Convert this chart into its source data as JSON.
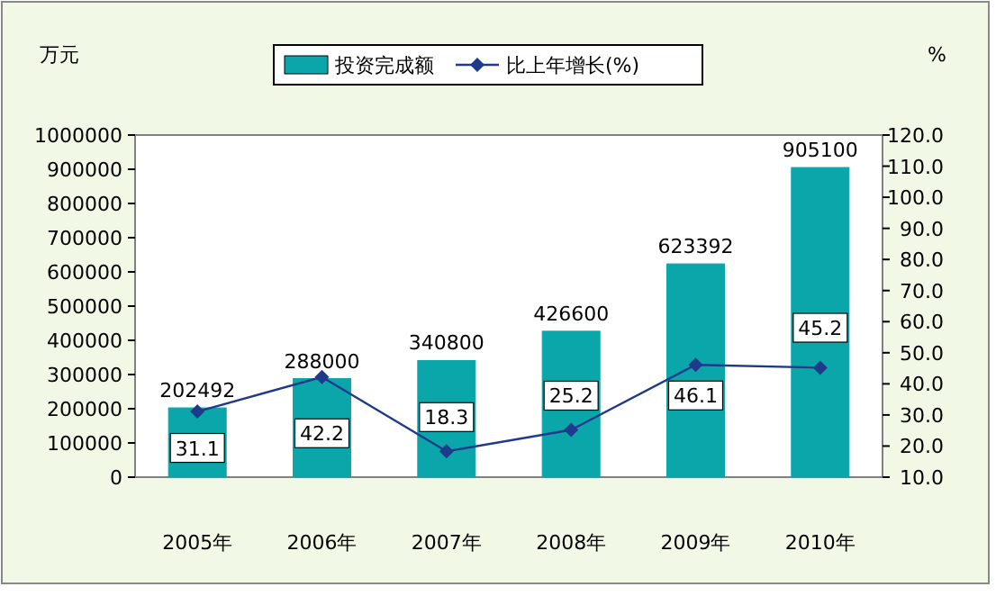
{
  "chart_data": {
    "type": "bar",
    "categories": [
      "2005年",
      "2006年",
      "2007年",
      "2008年",
      "2009年",
      "2010年"
    ],
    "ylabel": "万元",
    "y2label": "%",
    "series": [
      {
        "name": "投资完成额",
        "color": "#0aa6aa",
        "values": [
          202492,
          288000,
          340800,
          426600,
          623392,
          905100
        ]
      },
      {
        "name": "比上年增长(%)",
        "type": "line",
        "axis": "y2",
        "color": "#1f3a8a",
        "marker": "diamond",
        "values": [
          31.1,
          42.2,
          18.3,
          25.2,
          46.1,
          45.2
        ]
      }
    ],
    "ylim": [
      0,
      1000000
    ],
    "yticks": [
      0,
      100000,
      200000,
      300000,
      400000,
      500000,
      600000,
      700000,
      800000,
      900000,
      1000000
    ],
    "y2lim": [
      10,
      120
    ],
    "y2ticks": [
      {
        "value": 10,
        "label": "10.0"
      },
      {
        "value": 20,
        "label": "20.0"
      },
      {
        "value": 30,
        "label": "30.0"
      },
      {
        "value": 40,
        "label": "40.0"
      },
      {
        "value": 50,
        "label": "50.0"
      },
      {
        "value": 60,
        "label": "60.0"
      },
      {
        "value": 70,
        "label": "70.0"
      },
      {
        "value": 80,
        "label": "80.0"
      },
      {
        "value": 90,
        "label": "90.0"
      },
      {
        "value": 100,
        "label": "100.0"
      },
      {
        "value": 110,
        "label": "110.0"
      },
      {
        "value": 120,
        "label": "120.0"
      }
    ],
    "data_labels": true,
    "legend": "top",
    "grid": false
  }
}
